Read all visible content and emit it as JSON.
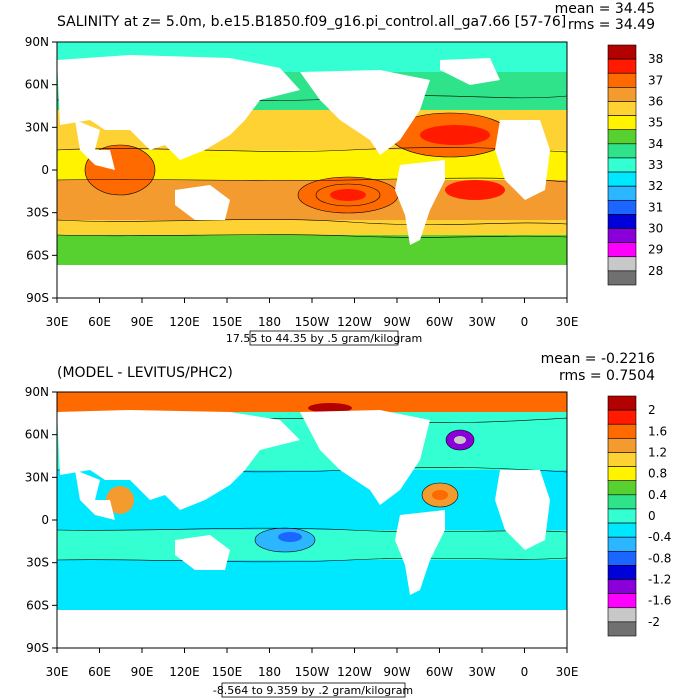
{
  "panels": [
    {
      "title": "SALINITY at z=   5.0m, b.e15.B1850.f09_g16.pi_control.all_ga7.66 [57-76]",
      "mean_label": "mean = 34.45",
      "rms_label": "rms = 34.49",
      "contour_info": "17.55 to 44.35 by .5 gram/kilogram",
      "colorbar": {
        "labels": [
          "38",
          "37",
          "36",
          "35",
          "34",
          "33",
          "32",
          "31",
          "30",
          "29",
          "28"
        ],
        "colors": [
          "#b30000",
          "#ff1a00",
          "#ff6a00",
          "#f39b2e",
          "#ffd233",
          "#fff300",
          "#56d12f",
          "#2fe38a",
          "#33ffd2",
          "#00e8ff",
          "#2bb6ff",
          "#1a66ff",
          "#0000d9",
          "#8a00d9",
          "#ff00ff",
          "#c8c8c8",
          "#707070"
        ]
      }
    },
    {
      "title": "(MODEL - LEVITUS/PHC2)",
      "mean_label": "mean = -0.2216",
      "rms_label": "rms = 0.7504",
      "contour_info": "-8.564 to 9.359 by .2 gram/kilogram",
      "colorbar": {
        "labels": [
          "2",
          "1.6",
          "1.2",
          "0.8",
          "0.4",
          "0",
          "-0.4",
          "-0.8",
          "-1.2",
          "-1.6",
          "-2"
        ],
        "colors": [
          "#b30000",
          "#ff1a00",
          "#ff6a00",
          "#f39b2e",
          "#ffd233",
          "#fff300",
          "#56d12f",
          "#2fe38a",
          "#33ffd2",
          "#00e8ff",
          "#2bb6ff",
          "#1a66ff",
          "#0000d9",
          "#8a00d9",
          "#ff00ff",
          "#c8c8c8",
          "#707070"
        ]
      }
    }
  ],
  "lat_labels": [
    "90N",
    "60N",
    "30N",
    "0",
    "30S",
    "60S",
    "90S"
  ],
  "lon_labels": [
    "30E",
    "60E",
    "90E",
    "120E",
    "150E",
    "180",
    "150W",
    "120W",
    "90W",
    "60W",
    "30W",
    "0",
    "30E"
  ]
}
